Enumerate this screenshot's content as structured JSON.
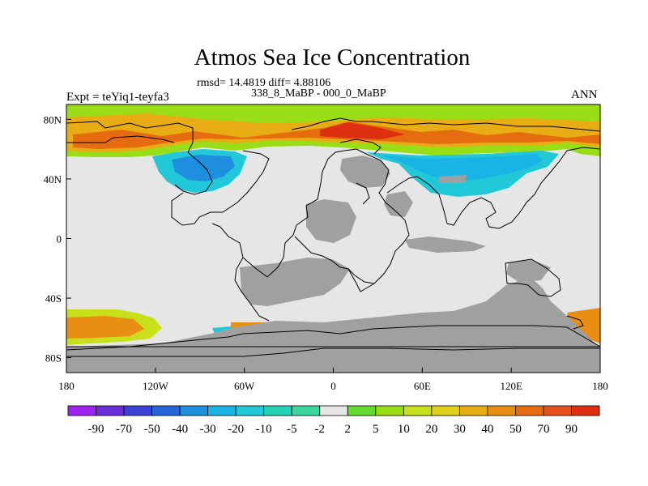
{
  "chart_data": {
    "type": "heatmap",
    "title": "Atmos Sea Ice Concentration",
    "subtitle": "rmsd= 14.4819 diff= 4.88106",
    "subtitle2": "338_8_MaBP - 000_0_MaBP",
    "left_label": "Expt = teYiq1-teyfa3",
    "right_label": "ANN",
    "lon_range": [
      -180,
      180
    ],
    "lat_range": [
      -90,
      90
    ],
    "x_ticks": [
      "180",
      "120W",
      "60W",
      "0",
      "60E",
      "120E",
      "180"
    ],
    "y_ticks": [
      "80N",
      "40N",
      "0",
      "40S",
      "80S"
    ],
    "colorbar": {
      "labels": [
        "-90",
        "-70",
        "-50",
        "-40",
        "-30",
        "-20",
        "-10",
        "-5",
        "-2",
        "2",
        "5",
        "10",
        "20",
        "30",
        "40",
        "50",
        "70",
        "90"
      ],
      "colors": [
        "#a020f0",
        "#6a2cd8",
        "#3b43d6",
        "#2566d9",
        "#1d8fde",
        "#19b4e6",
        "#21c8d8",
        "#26d2b4",
        "#3ad8a0",
        "#e6e6e6",
        "#63da2e",
        "#99dd16",
        "#c8e01a",
        "#e0d21a",
        "#e8ac14",
        "#e88e12",
        "#e66c10",
        "#e3501a",
        "#de3010"
      ]
    },
    "regions": [
      {
        "name": "northern high-latitude positive anomaly",
        "value_range": [
          10,
          90
        ]
      },
      {
        "name": "northern mid-latitude negative anomaly (west)",
        "value_range": [
          -30,
          -5
        ]
      },
      {
        "name": "northern mid-latitude negative anomaly (east)",
        "value_range": [
          -30,
          -5
        ]
      },
      {
        "name": "southern high-latitude positive anomaly",
        "value_range": [
          10,
          90
        ]
      },
      {
        "name": "masked land",
        "value_range": null
      }
    ],
    "colors": {
      "neutral": "#e6e6e6",
      "masked": "#a0a0a0",
      "outline": "#000000"
    }
  }
}
